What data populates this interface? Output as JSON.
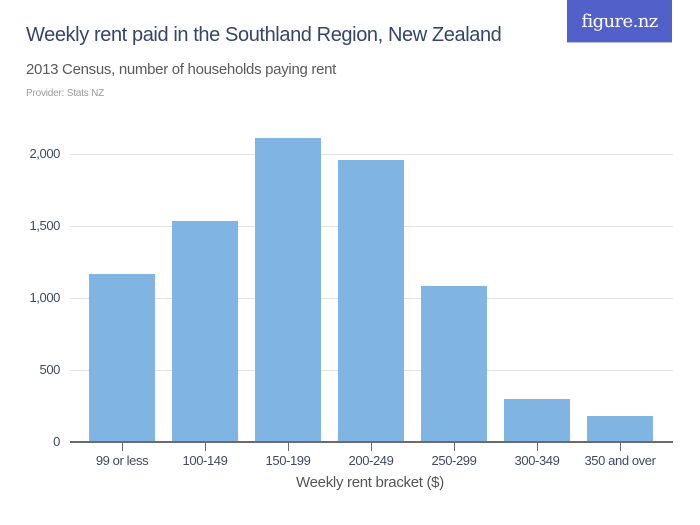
{
  "header": {
    "title": "Weekly rent paid in the Southland Region, New Zealand",
    "subtitle": "2013 Census, number of households paying rent",
    "provider": "Provider: Stats NZ",
    "logo": "figure.nz"
  },
  "colors": {
    "bar": "#7fb4e3",
    "title": "#34466a",
    "logo_bg": "#5260c9"
  },
  "axis": {
    "y_ticks": [
      "2,000",
      "1,500",
      "1,000",
      "500",
      "0"
    ],
    "x_title": "Weekly rent bracket ($)"
  },
  "chart_data": {
    "type": "bar",
    "title": "Weekly rent paid in the Southland Region, New Zealand",
    "subtitle": "2013 Census, number of households paying rent",
    "xlabel": "Weekly rent bracket ($)",
    "ylabel": "",
    "categories": [
      "99 or less",
      "100-149",
      "150-199",
      "200-249",
      "250-299",
      "300-349",
      "350 and over"
    ],
    "values": [
      1167,
      1537,
      2109,
      1958,
      1083,
      299,
      181
    ],
    "ylim": [
      0,
      2000
    ],
    "yticks": [
      0,
      500,
      1000,
      1500,
      2000
    ],
    "grid": true,
    "legend": null
  }
}
